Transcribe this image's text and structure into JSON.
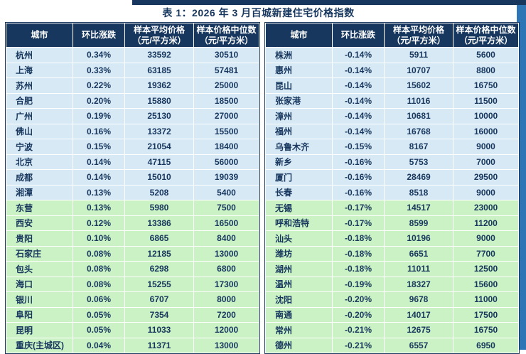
{
  "page": {
    "title": "表 1：2026 年 3 月百城新建住宅价格指数"
  },
  "colors": {
    "top_bar": "#17375E",
    "side_strip": "#2E75B6",
    "header_bg": "#17375E",
    "header_text": "#FFFFFF",
    "body_text": "#17375E",
    "band_blue": "#D8E9F6",
    "band_green": "#CBF2C4"
  },
  "chart_data": {
    "type": "table",
    "title": "表 1：2026 年 3 月百城新建住宅价格指数",
    "columns": [
      "城市",
      "环比涨跌",
      "样本平均价格（元/平方米）",
      "样本价格中位数（元/平方米）"
    ],
    "headers": {
      "city": "城市",
      "change": "环比涨跌",
      "avg_line1": "样本平均价格",
      "avg_line2": "（元/平方米）",
      "median_line1": "样本价格中位数",
      "median_line2": "（元/平方米）"
    },
    "left_rows": [
      {
        "city": "杭州",
        "change": "0.34%",
        "avg": 33592,
        "median": 30510
      },
      {
        "city": "上海",
        "change": "0.33%",
        "avg": 63185,
        "median": 57481
      },
      {
        "city": "苏州",
        "change": "0.22%",
        "avg": 19362,
        "median": 25000
      },
      {
        "city": "合肥",
        "change": "0.20%",
        "avg": 15880,
        "median": 18500
      },
      {
        "city": "广州",
        "change": "0.19%",
        "avg": 25130,
        "median": 27000
      },
      {
        "city": "佛山",
        "change": "0.16%",
        "avg": 13372,
        "median": 15500
      },
      {
        "city": "宁波",
        "change": "0.15%",
        "avg": 21054,
        "median": 18400
      },
      {
        "city": "北京",
        "change": "0.14%",
        "avg": 47115,
        "median": 56000
      },
      {
        "city": "成都",
        "change": "0.14%",
        "avg": 15010,
        "median": 19039
      },
      {
        "city": "湘潭",
        "change": "0.13%",
        "avg": 5208,
        "median": 5400
      },
      {
        "city": "东营",
        "change": "0.13%",
        "avg": 5980,
        "median": 7500
      },
      {
        "city": "西安",
        "change": "0.12%",
        "avg": 13386,
        "median": 16500
      },
      {
        "city": "贵阳",
        "change": "0.10%",
        "avg": 6865,
        "median": 8400
      },
      {
        "city": "石家庄",
        "change": "0.08%",
        "avg": 12185,
        "median": 13000
      },
      {
        "city": "包头",
        "change": "0.08%",
        "avg": 6298,
        "median": 6800
      },
      {
        "city": "海口",
        "change": "0.08%",
        "avg": 15255,
        "median": 17300
      },
      {
        "city": "银川",
        "change": "0.06%",
        "avg": 6707,
        "median": 8000
      },
      {
        "city": "阜阳",
        "change": "0.05%",
        "avg": 7354,
        "median": 7200
      },
      {
        "city": "昆明",
        "change": "0.05%",
        "avg": 11033,
        "median": 12000
      },
      {
        "city": "重庆(主城区)",
        "change": "0.04%",
        "avg": 11371,
        "median": 13000
      }
    ],
    "right_rows": [
      {
        "city": "株洲",
        "change": "-0.14%",
        "avg": 5911,
        "median": 5600
      },
      {
        "city": "惠州",
        "change": "-0.14%",
        "avg": 10707,
        "median": 8800
      },
      {
        "city": "昆山",
        "change": "-0.14%",
        "avg": 15602,
        "median": 16750
      },
      {
        "city": "张家港",
        "change": "-0.14%",
        "avg": 11016,
        "median": 11500
      },
      {
        "city": "漳州",
        "change": "-0.14%",
        "avg": 10681,
        "median": 10000
      },
      {
        "city": "福州",
        "change": "-0.14%",
        "avg": 16768,
        "median": 16000
      },
      {
        "city": "乌鲁木齐",
        "change": "-0.15%",
        "avg": 8167,
        "median": 9000
      },
      {
        "city": "新乡",
        "change": "-0.16%",
        "avg": 5753,
        "median": 7000
      },
      {
        "city": "厦门",
        "change": "-0.16%",
        "avg": 28469,
        "median": 29500
      },
      {
        "city": "长春",
        "change": "-0.16%",
        "avg": 8518,
        "median": 9000
      },
      {
        "city": "无锡",
        "change": "-0.17%",
        "avg": 14517,
        "median": 23000
      },
      {
        "city": "呼和浩特",
        "change": "-0.17%",
        "avg": 8599,
        "median": 11200
      },
      {
        "city": "汕头",
        "change": "-0.18%",
        "avg": 10196,
        "median": 9000
      },
      {
        "city": "潍坊",
        "change": "-0.18%",
        "avg": 6651,
        "median": 7700
      },
      {
        "city": "湖州",
        "change": "-0.18%",
        "avg": 11011,
        "median": 12500
      },
      {
        "city": "温州",
        "change": "-0.19%",
        "avg": 18327,
        "median": 15600
      },
      {
        "city": "沈阳",
        "change": "-0.20%",
        "avg": 9678,
        "median": 11000
      },
      {
        "city": "南通",
        "change": "-0.20%",
        "avg": 14017,
        "median": 17500
      },
      {
        "city": "常州",
        "change": "-0.21%",
        "avg": 12675,
        "median": 16750
      },
      {
        "city": "德州",
        "change": "-0.21%",
        "avg": 6557,
        "median": 6950
      }
    ],
    "band_rule": "first 10 rows of each table shaded blue, remaining rows shaded green"
  }
}
